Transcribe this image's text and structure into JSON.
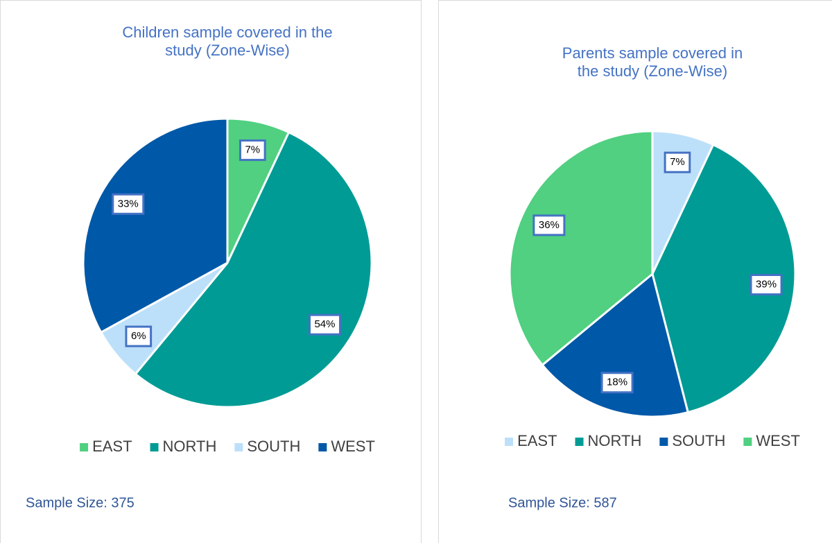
{
  "chart_data": [
    {
      "type": "pie",
      "title": "Children sample covered in the study (Zone-Wise)",
      "categories": [
        "EAST",
        "NORTH",
        "SOUTH",
        "WEST"
      ],
      "values": [
        7,
        54,
        6,
        33
      ],
      "value_labels": [
        "7%",
        "54%",
        "6%",
        "33%"
      ],
      "colors": [
        "#50d080",
        "#009b95",
        "#bde0fa",
        "#0058a8"
      ],
      "annotation": "Sample Size: 375"
    },
    {
      "type": "pie",
      "title": "Parents sample covered in the study (Zone-Wise)",
      "categories": [
        "EAST",
        "NORTH",
        "SOUTH",
        "WEST"
      ],
      "values": [
        7,
        39,
        18,
        36
      ],
      "value_labels": [
        "7%",
        "39%",
        "18%",
        "36%"
      ],
      "colors": [
        "#bde0fa",
        "#009b95",
        "#0058a8",
        "#50d080"
      ],
      "annotation": "Sample Size: 587"
    }
  ]
}
